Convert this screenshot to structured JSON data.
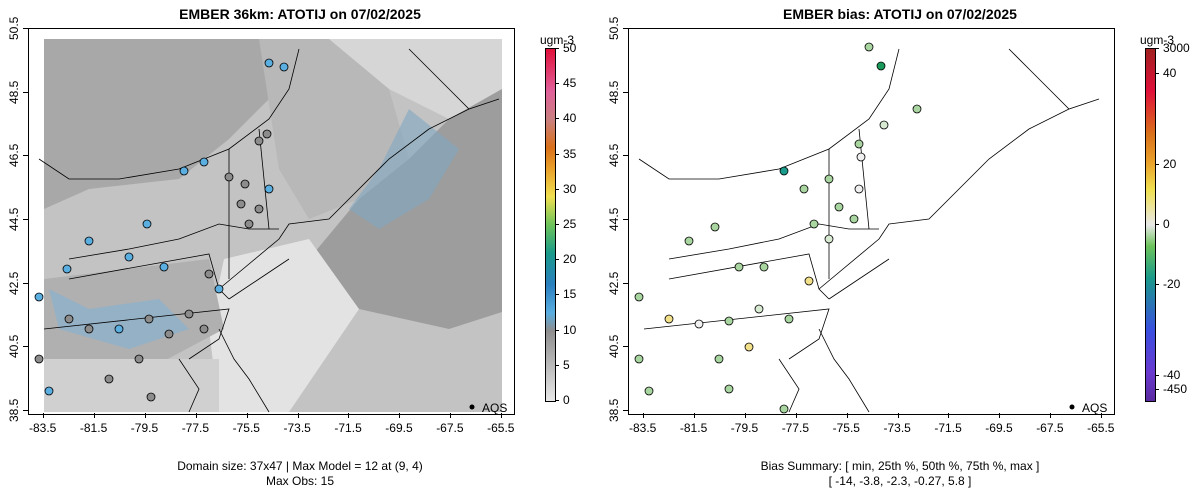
{
  "left": {
    "title": "EMBER 36km: ATOTIJ on 07/02/2025",
    "units": "ugm-3",
    "x_ticks": [
      "-83.5",
      "-81.5",
      "-79.5",
      "-77.5",
      "-75.5",
      "-73.5",
      "-71.5",
      "-69.5",
      "-67.5",
      "-65.5"
    ],
    "y_ticks": [
      "38.5",
      "40.5",
      "42.5",
      "44.5",
      "46.5",
      "48.5",
      "50.5"
    ],
    "cbar_labels": [
      "0",
      "5",
      "10",
      "15",
      "20",
      "25",
      "30",
      "35",
      "40",
      "45",
      "50"
    ],
    "legend": "AQS",
    "footer_line1": "Domain size: 37x47 | Max Model = 12 at (9, 4)",
    "footer_line2": "Max Obs: 15"
  },
  "right": {
    "title": "EMBER bias: ATOTIJ on 07/02/2025",
    "units": "ugm-3",
    "x_ticks": [
      "-83.5",
      "-81.5",
      "-79.5",
      "-77.5",
      "-75.5",
      "-73.5",
      "-71.5",
      "-69.5",
      "-67.5",
      "-65.5"
    ],
    "y_ticks": [
      "38.5",
      "40.5",
      "42.5",
      "44.5",
      "46.5",
      "48.5",
      "50.5"
    ],
    "cbar_labels": [
      "3000",
      "40",
      "20",
      "0",
      "-20",
      "-40",
      "-450"
    ],
    "legend": "AQS",
    "footer_line1": "Bias Summary: [ min, 25th %, 50th %, 75th %, max ]",
    "footer_line2": "[ -14,   -3.8,   -2.3,   -0.27,   5.8 ]"
  },
  "colors": {
    "grid_dark": "#9a9a9a",
    "grid_mid": "#b4b4b4",
    "grid_light": "#cfcfcf",
    "grid_pale": "#e2e2e2",
    "obs_blue": "#5aaee0",
    "obs_gray": "#8c8c8c",
    "bias_green": "#a9d5a0",
    "bias_yellow": "#f3e08a"
  }
}
